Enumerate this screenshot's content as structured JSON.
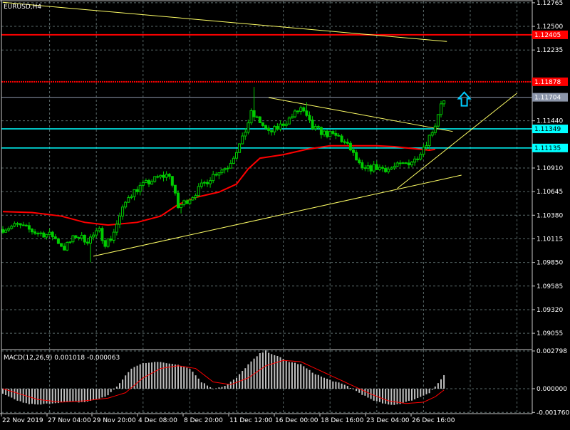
{
  "chart_window": {
    "symbol_label": "EURUSD,H4",
    "indicator_label": "MACD(12,26,9) 0.001018 -0.000063"
  },
  "colors": {
    "background": "#000000",
    "grid": "#5a6a6a",
    "axis": "#c8c8c8",
    "bull_candle": "#00cc00",
    "bear_candle": "#00cc00",
    "ma_line": "#ff0000",
    "trendline": "#ffff66",
    "resistance_line": "#ff0000",
    "support_line": "#00ffff",
    "bid_line": "#8c96aa",
    "arrow": "#00ccff",
    "macd_histogram": "#c0c0c0",
    "macd_signal": "#ff0000"
  },
  "chart_data": [
    {
      "type": "candlestick",
      "symbol": "EURUSD",
      "timeframe": "H4",
      "ylim": [
        1.0888,
        1.1278
      ],
      "y_ticks": [
        "1.12765",
        "1.12500",
        "1.12235",
        "1.11440",
        "1.10910",
        "1.10645",
        "1.10380",
        "1.10115",
        "1.09850",
        "1.09585",
        "1.09320",
        "1.09055"
      ],
      "y_tick_values": [
        1.12765,
        1.125,
        1.12235,
        1.1144,
        1.1091,
        1.10645,
        1.1038,
        1.10115,
        1.0985,
        1.09585,
        1.0932,
        1.09055
      ],
      "x_ticks": [
        "22 Nov 2019",
        "27 Nov 04:00",
        "29 Nov 20:00",
        "4 Dec 08:00",
        "8 Dec 20:00",
        "11 Dec 12:00",
        "16 Dec 00:00",
        "18 Dec 16:00",
        "23 Dec 04:00",
        "26 Dec 16:00"
      ],
      "bar_count": 152,
      "price_anchors": [
        [
          0,
          1.1022
        ],
        [
          6,
          1.1027
        ],
        [
          12,
          1.1019
        ],
        [
          18,
          1.1015
        ],
        [
          22,
          1.1001
        ],
        [
          26,
          1.1015
        ],
        [
          30,
          1.101
        ],
        [
          34,
          1.102
        ],
        [
          36,
          1.1007
        ],
        [
          38,
          1.1012
        ],
        [
          44,
          1.106
        ],
        [
          48,
          1.107
        ],
        [
          54,
          1.108
        ],
        [
          58,
          1.1084
        ],
        [
          61,
          1.1047
        ],
        [
          66,
          1.106
        ],
        [
          70,
          1.1074
        ],
        [
          74,
          1.1086
        ],
        [
          78,
          1.1093
        ],
        [
          83,
          1.1123
        ],
        [
          86,
          1.1152
        ],
        [
          89,
          1.1143
        ],
        [
          92,
          1.113
        ],
        [
          95,
          1.1136
        ],
        [
          99,
          1.1146
        ],
        [
          103,
          1.1158
        ],
        [
          107,
          1.1136
        ],
        [
          111,
          1.113
        ],
        [
          116,
          1.1126
        ],
        [
          120,
          1.1112
        ],
        [
          124,
          1.1088
        ],
        [
          128,
          1.1092
        ],
        [
          133,
          1.109
        ],
        [
          138,
          1.1095
        ],
        [
          142,
          1.11
        ],
        [
          146,
          1.112
        ],
        [
          149,
          1.114
        ],
        [
          151,
          1.1165
        ]
      ],
      "spikes": [
        [
          86,
          1.1182
        ],
        [
          104,
          1.1165
        ],
        [
          30,
          1.0985
        ],
        [
          61,
          1.104
        ]
      ],
      "current_price_label": "1.11704",
      "horizontal_levels": [
        {
          "label": "1.12405",
          "value": 1.12405,
          "role": "resistance"
        },
        {
          "label": "1.11878",
          "value": 1.11878,
          "role": "resistance"
        },
        {
          "label": "1.11704",
          "value": 1.11704,
          "role": "bid"
        },
        {
          "label": "1.11349",
          "value": 1.11349,
          "role": "support"
        },
        {
          "label": "1.11135",
          "value": 1.11135,
          "role": "support"
        }
      ],
      "moving_average": [
        [
          0,
          1.1042
        ],
        [
          10,
          1.1041
        ],
        [
          20,
          1.1037
        ],
        [
          28,
          1.103
        ],
        [
          36,
          1.1027
        ],
        [
          46,
          1.103
        ],
        [
          54,
          1.1037
        ],
        [
          60,
          1.105
        ],
        [
          66,
          1.1058
        ],
        [
          74,
          1.1064
        ],
        [
          80,
          1.1073
        ],
        [
          84,
          1.109
        ],
        [
          88,
          1.1102
        ],
        [
          96,
          1.1106
        ],
        [
          104,
          1.1112
        ],
        [
          112,
          1.1116
        ],
        [
          118,
          1.1116
        ],
        [
          128,
          1.1116
        ],
        [
          134,
          1.1115
        ],
        [
          140,
          1.1113
        ],
        [
          146,
          1.1111
        ],
        [
          148,
          1.1112
        ]
      ],
      "trendlines": [
        {
          "from": [
            0,
            1.1277
          ],
          "to": [
            152,
            1.1233
          ]
        },
        {
          "from": [
            31,
            1.0992
          ],
          "to": [
            157,
            1.1083
          ]
        },
        {
          "from": [
            91,
            1.117
          ],
          "to": [
            154,
            1.1132
          ]
        },
        {
          "from": [
            135,
            1.1068
          ],
          "to": [
            176,
            1.1175
          ]
        }
      ],
      "annotations": [
        {
          "type": "up-arrow",
          "at": [
            156,
            1.1168
          ]
        }
      ]
    },
    {
      "type": "macd",
      "params": "12,26,9",
      "main_value": "0.001018",
      "signal_value": "-0.000063",
      "ylim": [
        -0.00185,
        0.00285
      ],
      "y_ticks": [
        "0.002798",
        "0.000000",
        "-0.001760"
      ],
      "y_tick_values": [
        0.002798,
        0.0,
        -0.00176
      ],
      "histogram_anchors": [
        [
          0,
          -0.0004
        ],
        [
          4,
          -0.0008
        ],
        [
          8,
          -0.0011
        ],
        [
          12,
          -0.0012
        ],
        [
          16,
          -0.0011
        ],
        [
          20,
          -0.001
        ],
        [
          24,
          -0.001
        ],
        [
          28,
          -0.001
        ],
        [
          32,
          -0.0008
        ],
        [
          36,
          -0.0005
        ],
        [
          40,
          0.0004
        ],
        [
          44,
          0.0015
        ],
        [
          48,
          0.0019
        ],
        [
          52,
          0.002
        ],
        [
          56,
          0.0019
        ],
        [
          60,
          0.0018
        ],
        [
          64,
          0.0015
        ],
        [
          68,
          0.0005
        ],
        [
          72,
          0.0
        ],
        [
          76,
          0.0002
        ],
        [
          80,
          0.0008
        ],
        [
          84,
          0.0018
        ],
        [
          88,
          0.0026
        ],
        [
          90,
          0.0028
        ],
        [
          94,
          0.0024
        ],
        [
          98,
          0.002
        ],
        [
          102,
          0.0018
        ],
        [
          106,
          0.0012
        ],
        [
          110,
          0.0008
        ],
        [
          114,
          0.0005
        ],
        [
          118,
          0.0002
        ],
        [
          122,
          -0.0003
        ],
        [
          126,
          -0.0008
        ],
        [
          130,
          -0.0011
        ],
        [
          134,
          -0.0012
        ],
        [
          138,
          -0.001
        ],
        [
          142,
          -0.0007
        ],
        [
          146,
          -0.0003
        ],
        [
          149,
          0.0004
        ],
        [
          151,
          0.001
        ]
      ],
      "signal_anchors": [
        [
          0,
          0.0
        ],
        [
          6,
          -0.0004
        ],
        [
          12,
          -0.0008
        ],
        [
          20,
          -0.001
        ],
        [
          28,
          -0.0009
        ],
        [
          36,
          -0.0007
        ],
        [
          42,
          -0.0003
        ],
        [
          48,
          0.0008
        ],
        [
          54,
          0.0015
        ],
        [
          60,
          0.0017
        ],
        [
          66,
          0.0015
        ],
        [
          72,
          0.0005
        ],
        [
          78,
          0.0003
        ],
        [
          84,
          0.0008
        ],
        [
          90,
          0.0017
        ],
        [
          96,
          0.0021
        ],
        [
          102,
          0.002
        ],
        [
          108,
          0.0014
        ],
        [
          114,
          0.0008
        ],
        [
          120,
          0.0002
        ],
        [
          126,
          -0.0004
        ],
        [
          132,
          -0.0009
        ],
        [
          138,
          -0.0011
        ],
        [
          144,
          -0.001
        ],
        [
          148,
          -0.0006
        ],
        [
          151,
          -0.0001
        ]
      ]
    }
  ]
}
